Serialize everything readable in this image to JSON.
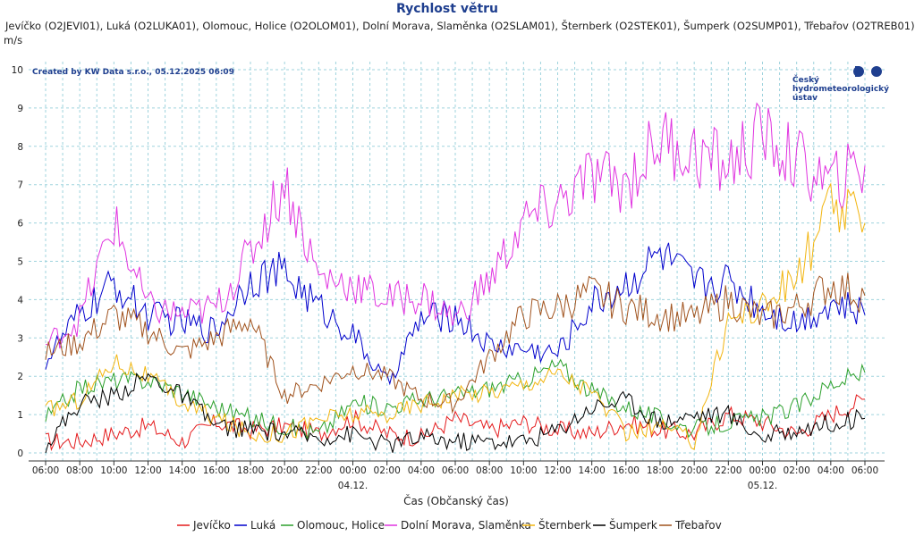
{
  "chart_data": {
    "type": "line",
    "title": "Rychlost větru",
    "subtitle": "Jevíčko (O2JEVI01), Luká (O2LUKA01), Olomouc, Holice (O2OLOM01), Dolní Morava, Slaměnka (O2SLAM01), Šternberk (O2STEK01), Šumperk (O2SUMP01), Třebařov (O2TREB01)",
    "ylabel": "m/s",
    "xlabel": "Čas (Občanský čas)",
    "credit": "Created by KW Data s.r.o., 05.12.2025 06:09",
    "logo_lines": [
      "Český",
      "hydrometeorologický",
      "ústav"
    ],
    "ylim": [
      0,
      10
    ],
    "y_ticks": [
      0,
      1,
      2,
      3,
      4,
      5,
      6,
      7,
      8,
      9,
      10
    ],
    "xlim_hours": [
      0,
      48
    ],
    "x_tick_hours": [
      0,
      2,
      4,
      6,
      8,
      10,
      12,
      14,
      16,
      18,
      20,
      22,
      24,
      26,
      28,
      30,
      32,
      34,
      36,
      38,
      40,
      42,
      44,
      46,
      48
    ],
    "x_tick_labels": [
      "06:00",
      "08:00",
      "10:00",
      "12:00",
      "14:00",
      "16:00",
      "18:00",
      "20:00",
      "22:00",
      "00:00",
      "02:00",
      "04:00",
      "06:00",
      "08:00",
      "10:00",
      "12:00",
      "14:00",
      "16:00",
      "18:00",
      "20:00",
      "22:00",
      "00:00",
      "02:00",
      "04:00",
      "06:00"
    ],
    "date_labels": [
      {
        "hour": 18,
        "label": "04.12."
      },
      {
        "hour": 42,
        "label": "05.12."
      }
    ],
    "grid": true,
    "legend_position": "bottom",
    "series": [
      {
        "name": "Jevíčko",
        "color": "#e41a1c",
        "x": [
          0,
          2,
          4,
          6,
          8,
          10,
          12,
          14,
          16,
          18,
          20,
          22,
          24,
          26,
          28,
          30,
          32,
          34,
          36,
          38,
          40,
          42,
          44,
          46,
          48
        ],
        "values": [
          0.3,
          0.3,
          0.5,
          0.7,
          0.3,
          0.8,
          0.6,
          0.7,
          0.5,
          0.9,
          0.5,
          0.4,
          0.9,
          0.6,
          0.8,
          0.6,
          0.5,
          0.8,
          0.6,
          0.5,
          1.0,
          0.8,
          0.5,
          1.0,
          1.4
        ]
      },
      {
        "name": "Luká",
        "color": "#0000cc",
        "x": [
          0,
          2,
          4,
          6,
          8,
          10,
          12,
          14,
          16,
          18,
          20,
          22,
          24,
          26,
          28,
          30,
          32,
          34,
          36,
          38,
          40,
          42,
          44,
          46,
          48
        ],
        "values": [
          2.4,
          3.6,
          4.4,
          3.6,
          3.4,
          3.2,
          4.6,
          4.7,
          3.8,
          3.1,
          1.8,
          3.5,
          3.6,
          2.8,
          2.7,
          2.6,
          3.9,
          4.4,
          5.2,
          4.4,
          4.5,
          3.8,
          3.4,
          3.9,
          3.6
        ]
      },
      {
        "name": "Olomouc, Holice",
        "color": "#2ca02c",
        "x": [
          0,
          2,
          4,
          6,
          8,
          10,
          12,
          14,
          16,
          18,
          20,
          22,
          24,
          26,
          28,
          30,
          32,
          34,
          36,
          38,
          40,
          42,
          44,
          46,
          48
        ],
        "values": [
          0.9,
          1.7,
          1.9,
          1.9,
          1.6,
          1.2,
          0.9,
          0.7,
          0.5,
          1.3,
          1.2,
          1.4,
          1.5,
          1.7,
          1.9,
          2.3,
          1.6,
          1.2,
          0.9,
          0.6,
          0.8,
          0.9,
          1.2,
          1.8,
          2.1
        ]
      },
      {
        "name": "Dolní Morava, Slaměnka",
        "color": "#e033e0",
        "x": [
          0,
          2,
          4,
          6,
          8,
          10,
          12,
          14,
          16,
          18,
          20,
          22,
          24,
          26,
          28,
          30,
          32,
          34,
          36,
          38,
          40,
          42,
          44,
          46,
          48
        ],
        "values": [
          2.8,
          3.5,
          6.0,
          3.8,
          3.6,
          3.8,
          5.2,
          7.1,
          4.6,
          4.4,
          4.0,
          4.1,
          3.5,
          4.5,
          6.0,
          6.5,
          7.2,
          7.0,
          8.2,
          7.8,
          7.5,
          8.3,
          7.6,
          7.0,
          7.5
        ]
      },
      {
        "name": "Šternberk",
        "color": "#f2b50f",
        "x": [
          0,
          2,
          4,
          6,
          8,
          10,
          12,
          14,
          16,
          18,
          20,
          22,
          24,
          26,
          28,
          30,
          32,
          34,
          36,
          38,
          40,
          42,
          44,
          46,
          48
        ],
        "values": [
          1.1,
          1.4,
          2.4,
          2.0,
          1.3,
          0.9,
          0.5,
          0.5,
          0.9,
          1.0,
          1.0,
          1.3,
          1.5,
          1.6,
          1.8,
          2.1,
          1.6,
          0.5,
          0.7,
          0.3,
          3.5,
          3.8,
          4.6,
          6.4,
          6.0
        ]
      },
      {
        "name": "Šumperk",
        "color": "#000000",
        "x": [
          0,
          2,
          4,
          6,
          8,
          10,
          12,
          14,
          16,
          18,
          20,
          22,
          24,
          26,
          28,
          30,
          32,
          34,
          36,
          38,
          40,
          42,
          44,
          46,
          48
        ],
        "values": [
          0.2,
          1.3,
          1.5,
          2.0,
          1.5,
          0.7,
          0.6,
          0.5,
          0.4,
          0.5,
          0.2,
          0.4,
          0.3,
          0.3,
          0.3,
          0.6,
          1.2,
          1.4,
          0.8,
          1.0,
          1.0,
          0.4,
          0.6,
          0.8,
          0.9
        ]
      },
      {
        "name": "Třebařov",
        "color": "#a0521d",
        "x": [
          0,
          2,
          4,
          6,
          8,
          10,
          12,
          14,
          16,
          18,
          20,
          22,
          24,
          26,
          28,
          30,
          32,
          34,
          36,
          38,
          40,
          42,
          44,
          46,
          48
        ],
        "values": [
          2.6,
          2.9,
          3.6,
          3.2,
          2.6,
          3.0,
          3.5,
          1.5,
          1.8,
          2.2,
          2.0,
          1.4,
          1.3,
          2.5,
          3.6,
          3.8,
          4.2,
          3.8,
          3.6,
          3.5,
          4.0,
          3.5,
          3.8,
          4.4,
          4.1
        ]
      }
    ]
  }
}
